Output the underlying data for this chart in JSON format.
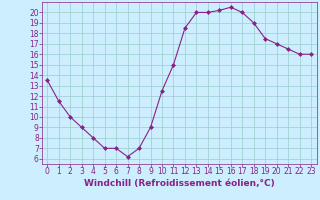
{
  "x": [
    0,
    1,
    2,
    3,
    4,
    5,
    6,
    7,
    8,
    9,
    10,
    11,
    12,
    13,
    14,
    15,
    16,
    17,
    18,
    19,
    20,
    21,
    22,
    23
  ],
  "y": [
    13.5,
    11.5,
    10.0,
    9.0,
    8.0,
    7.0,
    7.0,
    6.2,
    7.0,
    9.0,
    12.5,
    15.0,
    18.5,
    20.0,
    20.0,
    20.2,
    20.5,
    20.0,
    19.0,
    17.5,
    17.0,
    16.5,
    16.0,
    16.0
  ],
  "line_color": "#882288",
  "marker": "D",
  "marker_size": 2,
  "bg_color": "#cceeff",
  "grid_color": "#99cccc",
  "xlabel": "Windchill (Refroidissement éolien,°C)",
  "ylim_min": 5.5,
  "ylim_max": 21.0,
  "yticks": [
    6,
    7,
    8,
    9,
    10,
    11,
    12,
    13,
    14,
    15,
    16,
    17,
    18,
    19,
    20
  ],
  "xticks": [
    0,
    1,
    2,
    3,
    4,
    5,
    6,
    7,
    8,
    9,
    10,
    11,
    12,
    13,
    14,
    15,
    16,
    17,
    18,
    19,
    20,
    21,
    22,
    23
  ],
  "tick_color": "#882288",
  "label_color": "#882288",
  "axis_label_fontsize": 6.5,
  "tick_fontsize": 5.5,
  "line_width": 0.8
}
